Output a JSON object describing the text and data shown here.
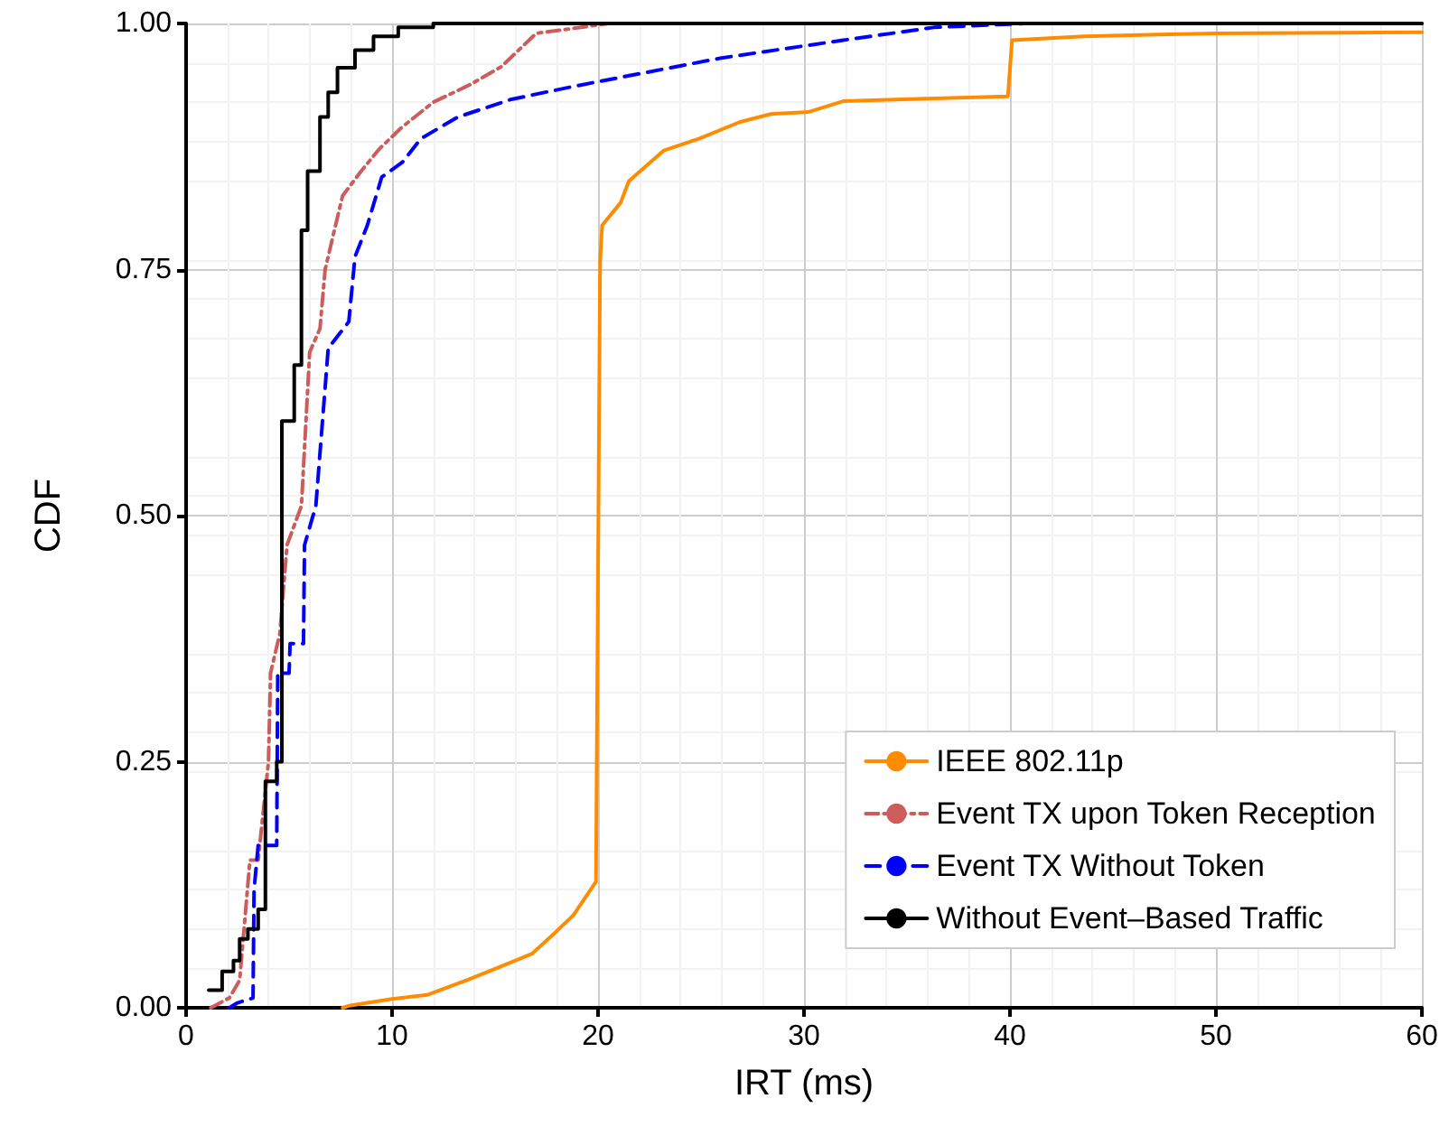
{
  "chart_data": {
    "type": "step",
    "xlabel": "IRT (ms)",
    "ylabel": "CDF",
    "xlim": [
      0,
      60
    ],
    "xticks": [
      0,
      10,
      20,
      30,
      40,
      50,
      60
    ],
    "ylim": [
      0,
      1
    ],
    "yticks": [
      {
        "value": 0,
        "label": "0.00"
      },
      {
        "value": 0.25,
        "label": "0.25"
      },
      {
        "value": 0.5,
        "label": "0.50"
      },
      {
        "value": 0.75,
        "label": "0.75"
      },
      {
        "value": 1,
        "label": "1.00"
      }
    ],
    "grid": true,
    "legend": "bottom right",
    "marker": "none",
    "series": [
      {
        "name": "IEEE 802.11p",
        "color": "#ff8c00",
        "line_style": "solid",
        "type": "line",
        "x": [
          7.6,
          7.9,
          10,
          11.7,
          13.5,
          15.3,
          16.8,
          17.9,
          18.8,
          19.9,
          20.1,
          20.2,
          21.1,
          21.5,
          23.2,
          24.9,
          26.9,
          28.4,
          30.2,
          31.9,
          34.8,
          39.9,
          40.1,
          43.6,
          50,
          60
        ],
        "values": [
          0,
          0.002,
          0.009,
          0.013,
          0.027,
          0.042,
          0.055,
          0.076,
          0.094,
          0.128,
          0.758,
          0.795,
          0.818,
          0.84,
          0.871,
          0.883,
          0.9,
          0.908,
          0.91,
          0.921,
          0.923,
          0.926,
          0.983,
          0.987,
          0.99,
          0.991
        ]
      },
      {
        "name": "Event TX upon Token Reception",
        "color": "#cd5c5c",
        "line_style": "dashdot",
        "type": "line",
        "x": [
          1.2,
          2.1,
          2.6,
          3.1,
          3.5,
          4.0,
          4.1,
          4.55,
          4.9,
          5.6,
          6.0,
          6.5,
          6.75,
          7.2,
          7.6,
          8.5,
          9.4,
          10.5,
          12,
          13.8,
          15.3,
          16.1,
          17,
          18.8,
          20.5,
          60
        ],
        "values": [
          0,
          0.01,
          0.028,
          0.15,
          0.15,
          0.25,
          0.34,
          0.38,
          0.47,
          0.51,
          0.666,
          0.69,
          0.75,
          0.79,
          0.825,
          0.85,
          0.873,
          0.895,
          0.92,
          0.938,
          0.956,
          0.972,
          0.99,
          0.995,
          1,
          1
        ]
      },
      {
        "name": "Event TX Without Token",
        "color": "#0000ff",
        "line_style": "dashed",
        "type": "line",
        "x": [
          2.1,
          2.5,
          3.25,
          3.3,
          3.5,
          4.4,
          4.45,
          5.0,
          5.05,
          5.7,
          5.75,
          6.3,
          6.9,
          7.9,
          8.2,
          8.8,
          9.5,
          10.5,
          11.4,
          13.2,
          15.8,
          18.8,
          26,
          31.9,
          36.3,
          40.7
        ],
        "values": [
          0,
          0.005,
          0.01,
          0.12,
          0.165,
          0.165,
          0.34,
          0.34,
          0.37,
          0.37,
          0.47,
          0.51,
          0.67,
          0.697,
          0.763,
          0.795,
          0.844,
          0.859,
          0.883,
          0.905,
          0.923,
          0.936,
          0.965,
          0.983,
          0.996,
          1
        ]
      },
      {
        "name": "Without Event–Based Traffic",
        "color": "#000000",
        "line_style": "solid",
        "x": [
          1.1,
          1.75,
          2.3,
          2.6,
          3.0,
          3.5,
          3.85,
          4.4,
          4.65,
          5.25,
          5.6,
          5.9,
          6.5,
          6.9,
          7.35,
          8.2,
          9.1,
          10.3,
          12,
          60
        ],
        "values": [
          0.018,
          0.037,
          0.048,
          0.07,
          0.08,
          0.1,
          0.23,
          0.25,
          0.596,
          0.653,
          0.79,
          0.85,
          0.905,
          0.93,
          0.955,
          0.973,
          0.987,
          0.996,
          1,
          1
        ]
      }
    ]
  }
}
